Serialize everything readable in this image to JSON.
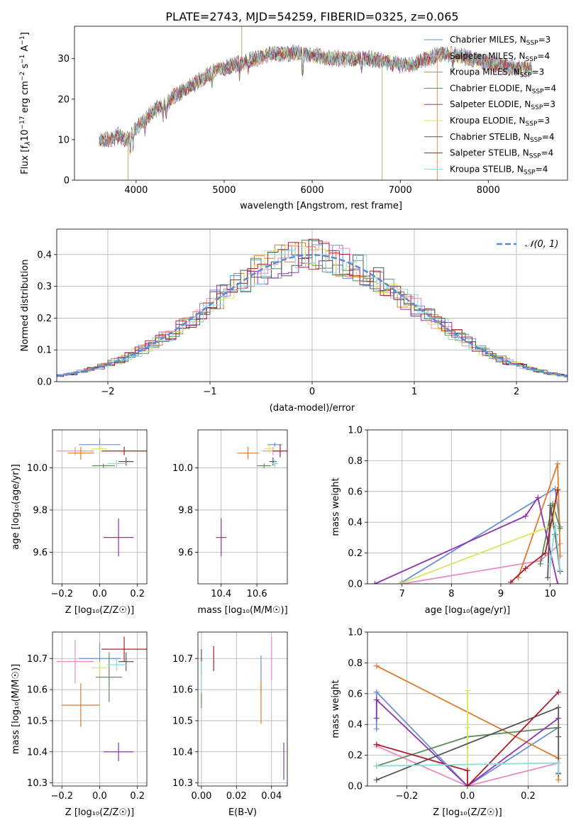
{
  "figure_title": "PLATE=2743, MJD=54259, FIBERID=0325, z=0.065",
  "colors": {
    "Chabrier MILES": "#6a8fd8",
    "Salpeter MILES": "#e88cc4",
    "Kroupa MILES": "#e07a2a",
    "Chabrier ELODIE": "#5a8a5a",
    "Salpeter ELODIE": "#8e35b0",
    "Kroupa ELODIE": "#d6e65a",
    "Chabrier STELIB": "#555555",
    "Salpeter STELIB": "#b01c2a",
    "Kroupa STELIB": "#88dde0",
    "normal_curve": "#5a8ad8",
    "grid": "#b0b0b0"
  },
  "chart_data": [
    {
      "id": "spectrum",
      "type": "line",
      "title": "PLATE=2743, MJD=54259, FIBERID=0325, z=0.065",
      "xlabel": "wavelength [Angstrom, rest frame]",
      "ylabel": "Flux [f_λ 10^-17 erg cm^-2 s^-1 A^-1]",
      "xlim": [
        3300,
        8900
      ],
      "ylim": [
        0,
        38
      ],
      "xticks": [
        "4000",
        "5000",
        "6000",
        "7000",
        "8000"
      ],
      "yticks": [
        "0",
        "10",
        "20",
        "30"
      ],
      "grid": false,
      "legend_position": "right",
      "continuum": [
        [
          3580,
          10
        ],
        [
          3700,
          10
        ],
        [
          3800,
          11
        ],
        [
          3900,
          10
        ],
        [
          3950,
          12
        ],
        [
          4050,
          14
        ],
        [
          4150,
          16
        ],
        [
          4250,
          18
        ],
        [
          4350,
          19
        ],
        [
          4450,
          21
        ],
        [
          4600,
          23
        ],
        [
          4750,
          25
        ],
        [
          4900,
          27
        ],
        [
          5050,
          28
        ],
        [
          5200,
          29
        ],
        [
          5350,
          30
        ],
        [
          5500,
          31
        ],
        [
          5650,
          31
        ],
        [
          5800,
          31.5
        ],
        [
          5950,
          31
        ],
        [
          6100,
          30.5
        ],
        [
          6250,
          30
        ],
        [
          6400,
          30
        ],
        [
          6600,
          30
        ],
        [
          6800,
          29.5
        ],
        [
          7000,
          28.5
        ],
        [
          7150,
          28.5
        ],
        [
          7300,
          30
        ],
        [
          7450,
          31
        ],
        [
          7600,
          31
        ],
        [
          7800,
          30
        ],
        [
          8000,
          29
        ],
        [
          8200,
          28
        ],
        [
          8400,
          27.5
        ],
        [
          8500,
          27.5
        ]
      ],
      "series": [
        {
          "name": "Chabrier MILES, N_SSP=3",
          "label": "Chabrier MILES, N",
          "sub": "SSP",
          "tail": "=3"
        },
        {
          "name": "Salpeter MILES, N_SSP=4",
          "label": "Salpeter MILES, N",
          "sub": "SSP",
          "tail": "=4"
        },
        {
          "name": "Kroupa MILES, N_SSP=3",
          "label": "Kroupa MILES, N",
          "sub": "SSP",
          "tail": "=3"
        },
        {
          "name": "Chabrier ELODIE, N_SSP=4",
          "label": "Chabrier ELODIE, N",
          "sub": "SSP",
          "tail": "=4"
        },
        {
          "name": "Salpeter ELODIE, N_SSP=3",
          "label": "Salpeter ELODIE, N",
          "sub": "SSP",
          "tail": "=3"
        },
        {
          "name": "Kroupa ELODIE, N_SSP=3",
          "label": "Kroupa ELODIE, N",
          "sub": "SSP",
          "tail": "=3"
        },
        {
          "name": "Chabrier STELIB, N_SSP=4",
          "label": "Chabrier STELIB, N",
          "sub": "SSP",
          "tail": "=4"
        },
        {
          "name": "Salpeter STELIB, N_SSP=4",
          "label": "Salpeter STELIB, N",
          "sub": "SSP",
          "tail": "=4"
        },
        {
          "name": "Kroupa STELIB, N_SSP=4",
          "label": "Kroupa STELIB, N",
          "sub": "SSP",
          "tail": "=4"
        }
      ]
    },
    {
      "id": "residuals",
      "type": "histogram",
      "xlabel": "(data-model)/error",
      "ylabel": "Normed distribution",
      "xlim": [
        -2.5,
        2.5
      ],
      "ylim": [
        0,
        0.48
      ],
      "xticks": [
        "−2",
        "−1",
        "0",
        "1",
        "2"
      ],
      "yticks": [
        "0.0",
        "0.1",
        "0.2",
        "0.3",
        "0.4"
      ],
      "grid": true,
      "legend": "𝒩(0, 1)",
      "legend_position": "top-right",
      "bin_width": 0.1
    },
    {
      "id": "age_vs_Z",
      "type": "errorbar",
      "xlabel": "Z [log10(Z/Z☉)]",
      "ylabel": "age [log10(age/yr)]",
      "xlim": [
        -0.25,
        0.25
      ],
      "ylim": [
        9.45,
        10.18
      ],
      "xticks": [
        "−0.2",
        "0.0",
        "0.2"
      ],
      "yticks": [
        "9.6",
        "9.8",
        "10.0"
      ],
      "grid": true,
      "points": [
        {
          "series": "Chabrier MILES",
          "x": 0.0,
          "xerr": 0.11,
          "y": 10.11,
          "yerr": 0.03
        },
        {
          "series": "Salpeter MILES",
          "x": -0.13,
          "xerr": 0.1,
          "y": 10.08,
          "yerr": 0.02
        },
        {
          "series": "Kroupa MILES",
          "x": -0.1,
          "xerr": 0.07,
          "y": 10.07,
          "yerr": 0.03
        },
        {
          "series": "Chabrier ELODIE",
          "x": 0.02,
          "xerr": 0.06,
          "y": 10.01,
          "yerr": 0.01
        },
        {
          "series": "Salpeter ELODIE",
          "x": 0.1,
          "xerr": 0.08,
          "y": 9.67,
          "yerr": 0.09
        },
        {
          "series": "Kroupa ELODIE",
          "x": 0.0,
          "xerr": 0.04,
          "y": 10.09,
          "yerr": 0.02
        },
        {
          "series": "Chabrier STELIB",
          "x": 0.14,
          "xerr": 0.04,
          "y": 10.03,
          "yerr": 0.02
        },
        {
          "series": "Salpeter STELIB",
          "x": 0.13,
          "xerr": 0.12,
          "y": 10.08,
          "yerr": 0.02
        },
        {
          "series": "Kroupa STELIB",
          "x": 0.09,
          "xerr": 0.05,
          "y": 10.02,
          "yerr": 0.02
        }
      ]
    },
    {
      "id": "age_vs_mass",
      "type": "errorbar",
      "xlabel": "mass [log10(M/M☉)]",
      "ylabel": "",
      "xlim": [
        10.27,
        10.77
      ],
      "ylim": [
        9.45,
        10.18
      ],
      "xticks": [
        "10.4",
        "10.6"
      ],
      "yticks": [
        "9.6",
        "9.8",
        "10.0"
      ],
      "grid": true,
      "points": [
        {
          "series": "Chabrier MILES",
          "x": 10.7,
          "xerr": 0.04,
          "y": 10.11,
          "yerr": 0.01
        },
        {
          "series": "Salpeter MILES",
          "x": 10.69,
          "xerr": 0.06,
          "y": 10.08,
          "yerr": 0.02
        },
        {
          "series": "Kroupa MILES",
          "x": 10.55,
          "xerr": 0.06,
          "y": 10.07,
          "yerr": 0.03
        },
        {
          "series": "Chabrier ELODIE",
          "x": 10.64,
          "xerr": 0.04,
          "y": 10.01,
          "yerr": 0.01
        },
        {
          "series": "Salpeter ELODIE",
          "x": 10.4,
          "xerr": 0.03,
          "y": 9.67,
          "yerr": 0.09
        },
        {
          "series": "Kroupa ELODIE",
          "x": 10.67,
          "xerr": 0.03,
          "y": 10.09,
          "yerr": 0.02
        },
        {
          "series": "Chabrier STELIB",
          "x": 10.69,
          "xerr": 0.02,
          "y": 10.03,
          "yerr": 0.02
        },
        {
          "series": "Salpeter STELIB",
          "x": 10.73,
          "xerr": 0.04,
          "y": 10.08,
          "yerr": 0.03
        },
        {
          "series": "Kroupa STELIB",
          "x": 10.7,
          "xerr": 0.02,
          "y": 10.02,
          "yerr": 0.02
        }
      ]
    },
    {
      "id": "weight_vs_age",
      "type": "line",
      "xlabel": "age [log10(age/yr)]",
      "ylabel": "mass weight",
      "xlim": [
        6.3,
        10.35
      ],
      "ylim": [
        0,
        1
      ],
      "xticks": [
        "7",
        "8",
        "9",
        "10"
      ],
      "yticks": [
        "0.0",
        "0.2",
        "0.4",
        "0.6",
        "0.8",
        "1.0"
      ],
      "grid": true,
      "series": [
        {
          "name": "Chabrier MILES",
          "x": [
            7.0,
            10.1,
            10.2
          ],
          "y": [
            0.01,
            0.62,
            0.37
          ]
        },
        {
          "name": "Salpeter MILES",
          "x": [
            7.0,
            9.8,
            10.2
          ],
          "y": [
            0.0,
            0.15,
            0.26
          ]
        },
        {
          "name": "Kroupa MILES",
          "x": [
            9.35,
            10.15,
            10.2
          ],
          "y": [
            0.04,
            0.78,
            0.18
          ]
        },
        {
          "name": "Chabrier ELODIE",
          "x": [
            9.8,
            10.05,
            10.2
          ],
          "y": [
            0.13,
            0.52,
            0.36
          ]
        },
        {
          "name": "Salpeter ELODIE",
          "x": [
            6.45,
            9.5,
            9.75,
            10.15
          ],
          "y": [
            0.0,
            0.44,
            0.56,
            0.0
          ]
        },
        {
          "name": "Kroupa ELODIE",
          "x": [
            6.95,
            10.05,
            10.15
          ],
          "y": [
            0.0,
            0.38,
            0.62
          ]
        },
        {
          "name": "Chabrier STELIB",
          "x": [
            9.95,
            10.0,
            10.1,
            10.2
          ],
          "y": [
            0.04,
            0.51,
            0.32,
            0.08
          ]
        },
        {
          "name": "Salpeter STELIB",
          "x": [
            9.2,
            9.5,
            9.9,
            10.15
          ],
          "y": [
            0.01,
            0.1,
            0.2,
            0.61
          ]
        },
        {
          "name": "Kroupa STELIB",
          "x": [
            10.0,
            10.1,
            10.2
          ],
          "y": [
            0.13,
            0.38,
            0.09
          ]
        }
      ]
    },
    {
      "id": "mass_vs_Z",
      "type": "errorbar",
      "xlabel": "Z [log10(Z/Z☉)]",
      "ylabel": "mass [log10(M/M☉)]",
      "xlim": [
        -0.25,
        0.25
      ],
      "ylim": [
        10.29,
        10.785
      ],
      "xticks": [
        "−0.2",
        "0.0",
        "0.2"
      ],
      "yticks": [
        "10.3",
        "10.4",
        "10.5",
        "10.6",
        "10.7"
      ],
      "grid": true,
      "points": [
        {
          "series": "Chabrier MILES",
          "x": 0.0,
          "xerr": 0.11,
          "y": 10.7,
          "yerr": 0.05
        },
        {
          "series": "Salpeter MILES",
          "x": -0.13,
          "xerr": 0.1,
          "y": 10.69,
          "yerr": 0.07
        },
        {
          "series": "Kroupa MILES",
          "x": -0.1,
          "xerr": 0.1,
          "y": 10.55,
          "yerr": 0.07
        },
        {
          "series": "Chabrier ELODIE",
          "x": 0.05,
          "xerr": 0.07,
          "y": 10.64,
          "yerr": 0.08
        },
        {
          "series": "Salpeter ELODIE",
          "x": 0.1,
          "xerr": 0.08,
          "y": 10.4,
          "yerr": 0.03
        },
        {
          "series": "Kroupa ELODIE",
          "x": 0.0,
          "xerr": 0.04,
          "y": 10.67,
          "yerr": 0.02
        },
        {
          "series": "Chabrier STELIB",
          "x": 0.14,
          "xerr": 0.04,
          "y": 10.69,
          "yerr": 0.03
        },
        {
          "series": "Salpeter STELIB",
          "x": 0.13,
          "xerr": 0.12,
          "y": 10.73,
          "yerr": 0.04
        },
        {
          "series": "Kroupa STELIB",
          "x": 0.09,
          "xerr": 0.05,
          "y": 10.68,
          "yerr": 0.02
        }
      ]
    },
    {
      "id": "mass_vs_ebv",
      "type": "errorbar",
      "xlabel": "E(B-V)",
      "ylabel": "",
      "xlim": [
        -0.002,
        0.049
      ],
      "ylim": [
        10.29,
        10.785
      ],
      "xticks": [
        "0.00",
        "0.02",
        "0.04"
      ],
      "yticks": [
        "10.3",
        "10.4",
        "10.5",
        "10.6",
        "10.7"
      ],
      "grid": true,
      "points": [
        {
          "series": "Chabrier MILES",
          "x": 0.034,
          "y": 10.65,
          "yerr": 0.06
        },
        {
          "series": "Salpeter MILES",
          "x": 0.04,
          "y": 10.7,
          "yerr": 0.07
        },
        {
          "series": "Kroupa MILES",
          "x": 0.034,
          "y": 10.56,
          "yerr": 0.07
        },
        {
          "series": "Chabrier ELODIE",
          "x": 0.0,
          "y": 10.6,
          "yerr": 0.06
        },
        {
          "series": "Salpeter ELODIE",
          "x": 0.047,
          "y": 10.37,
          "yerr": 0.06
        },
        {
          "series": "Kroupa ELODIE",
          "x": 0.0,
          "y": 10.67,
          "yerr": 0.03
        },
        {
          "series": "Chabrier STELIB",
          "x": 0.0,
          "y": 10.69,
          "yerr": 0.04
        },
        {
          "series": "Salpeter STELIB",
          "x": 0.007,
          "y": 10.7,
          "yerr": 0.04
        },
        {
          "series": "Kroupa STELIB",
          "x": 0.0,
          "y": 10.64,
          "yerr": 0.05
        }
      ]
    },
    {
      "id": "weight_vs_Z",
      "type": "line",
      "xlabel": "Z [log10(Z/Z☉)]",
      "ylabel": "mass weight",
      "xlim": [
        -0.33,
        0.33
      ],
      "ylim": [
        0,
        1
      ],
      "xticks": [
        "−0.2",
        "0.0",
        "0.2"
      ],
      "yticks": [
        "0.0",
        "0.2",
        "0.4",
        "0.6",
        "0.8",
        "1.0"
      ],
      "grid": true,
      "series": [
        {
          "name": "Chabrier MILES",
          "x": [
            -0.3,
            -0.3,
            0.0,
            0.3
          ],
          "y": [
            0.37,
            0.61,
            0.0,
            0.38
          ]
        },
        {
          "name": "Salpeter MILES",
          "x": [
            -0.3,
            0.0,
            0.3
          ],
          "y": [
            0.26,
            0.0,
            0.15
          ]
        },
        {
          "name": "Kroupa MILES",
          "x": [
            -0.3,
            0.3,
            0.3
          ],
          "y": [
            0.78,
            0.18,
            0.04
          ]
        },
        {
          "name": "Chabrier ELODIE",
          "x": [
            -0.3,
            0.0,
            0.3
          ],
          "y": [
            0.13,
            0.32,
            0.38
          ]
        },
        {
          "name": "Salpeter ELODIE",
          "x": [
            -0.3,
            -0.3,
            0.0,
            0.3
          ],
          "y": [
            0.44,
            0.56,
            0.0,
            0.44
          ]
        },
        {
          "name": "Kroupa ELODIE",
          "x": [
            0.0,
            0.0,
            0.0
          ],
          "y": [
            0.0,
            0.38,
            0.62
          ]
        },
        {
          "name": "Chabrier STELIB",
          "x": [
            -0.3,
            0.3,
            0.3,
            0.3
          ],
          "y": [
            0.04,
            0.51,
            0.32,
            0.08
          ]
        },
        {
          "name": "Salpeter STELIB",
          "x": [
            -0.3,
            0.0,
            0.0,
            0.3
          ],
          "y": [
            0.27,
            0.1,
            0.0,
            0.61
          ]
        },
        {
          "name": "Kroupa STELIB",
          "x": [
            -0.3,
            0.3,
            0.3
          ],
          "y": [
            0.13,
            0.15,
            0.09
          ]
        }
      ]
    }
  ]
}
